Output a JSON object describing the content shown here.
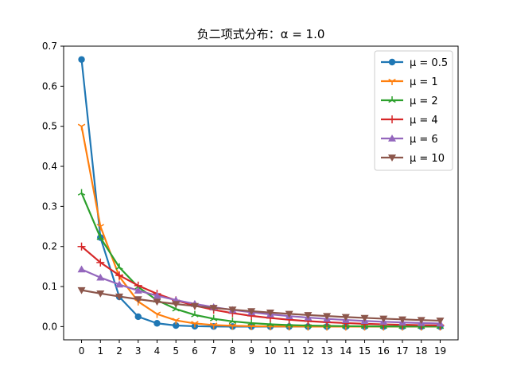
{
  "chart_data": {
    "type": "line",
    "title": "负二项式分布：α = 1.0",
    "xlabel": "",
    "ylabel": "",
    "x": [
      0,
      1,
      2,
      3,
      4,
      5,
      6,
      7,
      8,
      9,
      10,
      11,
      12,
      13,
      14,
      15,
      16,
      17,
      18,
      19
    ],
    "xlim": [
      -0.95,
      19.95
    ],
    "ylim": [
      -0.033,
      0.7
    ],
    "yticks": [
      0.0,
      0.1,
      0.2,
      0.3,
      0.4,
      0.5,
      0.6,
      0.7
    ],
    "ytick_labels": [
      "0.0",
      "0.1",
      "0.2",
      "0.3",
      "0.4",
      "0.5",
      "0.6",
      "0.7"
    ],
    "xtick_labels": [
      "0",
      "1",
      "2",
      "3",
      "4",
      "5",
      "6",
      "7",
      "8",
      "9",
      "10",
      "11",
      "12",
      "13",
      "14",
      "15",
      "16",
      "17",
      "18",
      "19"
    ],
    "grid": false,
    "legend_position": "top-right",
    "series": [
      {
        "name": "μ = 0.5",
        "label_text": "μ = 0.5",
        "color": "#1f77b4",
        "marker": "circle",
        "values": [
          0.6667,
          0.2222,
          0.0741,
          0.0247,
          0.0082,
          0.0027,
          0.0009,
          0.0003,
          0.0001,
          0.0,
          0.0,
          0.0,
          0.0,
          0.0,
          0.0,
          0.0,
          0.0,
          0.0,
          0.0,
          0.0
        ]
      },
      {
        "name": "μ = 1",
        "label_text": "μ = 1",
        "color": "#ff7f0e",
        "marker": "tri_down",
        "values": [
          0.5,
          0.25,
          0.125,
          0.0625,
          0.0313,
          0.0156,
          0.0078,
          0.0039,
          0.002,
          0.001,
          0.0005,
          0.0002,
          0.0001,
          0.0001,
          0.0,
          0.0,
          0.0,
          0.0,
          0.0,
          0.0
        ]
      },
      {
        "name": "μ = 2",
        "label_text": "μ = 2",
        "color": "#2ca02c",
        "marker": "tri_up",
        "values": [
          0.3333,
          0.2222,
          0.1481,
          0.0988,
          0.0658,
          0.0439,
          0.0293,
          0.0195,
          0.013,
          0.0087,
          0.0058,
          0.0039,
          0.0026,
          0.0017,
          0.0011,
          0.0008,
          0.0005,
          0.0003,
          0.0002,
          0.0002
        ]
      },
      {
        "name": "μ = 4",
        "label_text": "μ = 4",
        "color": "#d62728",
        "marker": "plus",
        "values": [
          0.2,
          0.16,
          0.128,
          0.1024,
          0.0819,
          0.0655,
          0.0524,
          0.0419,
          0.0336,
          0.0268,
          0.0215,
          0.0172,
          0.0137,
          0.011,
          0.0088,
          0.007,
          0.0056,
          0.0045,
          0.0036,
          0.0029
        ]
      },
      {
        "name": "μ = 6",
        "label_text": "μ = 6",
        "color": "#9467bd",
        "marker": "triangle_up",
        "values": [
          0.1429,
          0.1224,
          0.105,
          0.09,
          0.0771,
          0.0661,
          0.0567,
          0.0486,
          0.0416,
          0.0357,
          0.0306,
          0.0262,
          0.0225,
          0.0193,
          0.0165,
          0.0142,
          0.0121,
          0.0104,
          0.0089,
          0.0077
        ]
      },
      {
        "name": "μ = 10",
        "label_text": "μ = 10",
        "color": "#8c564b",
        "marker": "triangle_down",
        "values": [
          0.0909,
          0.0826,
          0.0751,
          0.0683,
          0.0621,
          0.0564,
          0.0513,
          0.0466,
          0.0424,
          0.0385,
          0.035,
          0.0318,
          0.0289,
          0.0263,
          0.0239,
          0.0217,
          0.0198,
          0.018,
          0.0163,
          0.0148
        ]
      }
    ]
  }
}
